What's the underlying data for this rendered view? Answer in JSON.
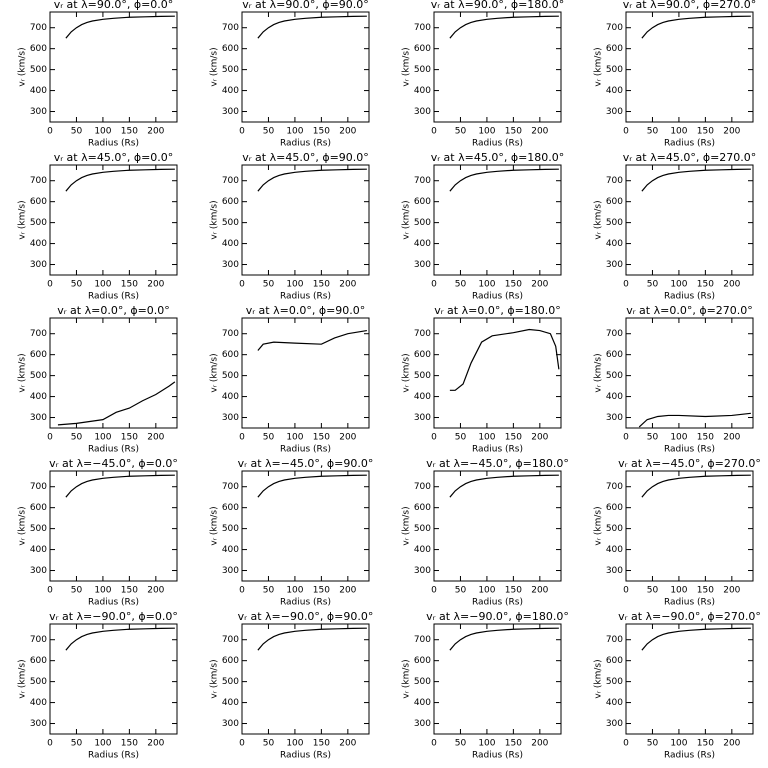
{
  "chart_data": [
    {
      "type": "line",
      "title": "vᵣ at λ=90.0°, ϕ=0.0°",
      "x_label": "Radius (Rs)",
      "y_label": "vᵣ (km/s)",
      "x": [
        30,
        40,
        50,
        60,
        70,
        80,
        100,
        120,
        150,
        180,
        210,
        236
      ],
      "values": [
        650,
        680,
        700,
        715,
        725,
        732,
        740,
        745,
        750,
        752,
        754,
        755
      ],
      "color": "#000000",
      "xlim": [
        0,
        240
      ],
      "ylim": [
        250,
        775
      ],
      "xticks": [
        0,
        50,
        100,
        150,
        200
      ],
      "yticks": [
        300,
        400,
        500,
        600,
        700
      ]
    },
    {
      "type": "line",
      "title": "vᵣ at λ=90.0°, ϕ=90.0°",
      "x_label": "Radius (Rs)",
      "y_label": "vᵣ (km/s)",
      "x": [
        30,
        40,
        50,
        60,
        70,
        80,
        100,
        120,
        150,
        180,
        210,
        236
      ],
      "values": [
        650,
        680,
        700,
        715,
        725,
        732,
        740,
        745,
        750,
        752,
        754,
        755
      ],
      "color": "#000000",
      "xlim": [
        0,
        240
      ],
      "ylim": [
        250,
        775
      ],
      "xticks": [
        0,
        50,
        100,
        150,
        200
      ],
      "yticks": [
        300,
        400,
        500,
        600,
        700
      ]
    },
    {
      "type": "line",
      "title": "vᵣ at λ=90.0°, ϕ=180.0°",
      "x_label": "Radius (Rs)",
      "y_label": "vᵣ (km/s)",
      "x": [
        30,
        40,
        50,
        60,
        70,
        80,
        100,
        120,
        150,
        180,
        210,
        236
      ],
      "values": [
        650,
        680,
        700,
        715,
        725,
        732,
        740,
        745,
        750,
        752,
        754,
        755
      ],
      "color": "#000000",
      "xlim": [
        0,
        240
      ],
      "ylim": [
        250,
        775
      ],
      "xticks": [
        0,
        50,
        100,
        150,
        200
      ],
      "yticks": [
        300,
        400,
        500,
        600,
        700
      ]
    },
    {
      "type": "line",
      "title": "vᵣ at λ=90.0°, ϕ=270.0°",
      "x_label": "Radius (Rs)",
      "y_label": "vᵣ (km/s)",
      "x": [
        30,
        40,
        50,
        60,
        70,
        80,
        100,
        120,
        150,
        180,
        210,
        236
      ],
      "values": [
        650,
        680,
        700,
        715,
        725,
        732,
        740,
        745,
        750,
        752,
        754,
        755
      ],
      "color": "#000000",
      "xlim": [
        0,
        240
      ],
      "ylim": [
        250,
        775
      ],
      "xticks": [
        0,
        50,
        100,
        150,
        200
      ],
      "yticks": [
        300,
        400,
        500,
        600,
        700
      ]
    },
    {
      "type": "line",
      "title": "vᵣ at λ=45.0°, ϕ=0.0°",
      "x_label": "Radius (Rs)",
      "y_label": "vᵣ (km/s)",
      "x": [
        30,
        40,
        50,
        60,
        70,
        80,
        100,
        120,
        150,
        180,
        210,
        236
      ],
      "values": [
        650,
        680,
        700,
        715,
        725,
        732,
        740,
        745,
        750,
        752,
        754,
        755
      ],
      "color": "#000000",
      "xlim": [
        0,
        240
      ],
      "ylim": [
        250,
        775
      ],
      "xticks": [
        0,
        50,
        100,
        150,
        200
      ],
      "yticks": [
        300,
        400,
        500,
        600,
        700
      ]
    },
    {
      "type": "line",
      "title": "vᵣ at λ=45.0°, ϕ=90.0°",
      "x_label": "Radius (Rs)",
      "y_label": "vᵣ (km/s)",
      "x": [
        30,
        40,
        50,
        60,
        70,
        80,
        100,
        120,
        150,
        180,
        210,
        236
      ],
      "values": [
        650,
        680,
        700,
        715,
        725,
        732,
        740,
        745,
        750,
        752,
        754,
        755
      ],
      "color": "#000000",
      "xlim": [
        0,
        240
      ],
      "ylim": [
        250,
        775
      ],
      "xticks": [
        0,
        50,
        100,
        150,
        200
      ],
      "yticks": [
        300,
        400,
        500,
        600,
        700
      ]
    },
    {
      "type": "line",
      "title": "vᵣ at λ=45.0°, ϕ=180.0°",
      "x_label": "Radius (Rs)",
      "y_label": "vᵣ (km/s)",
      "x": [
        30,
        40,
        50,
        60,
        70,
        80,
        100,
        120,
        150,
        180,
        210,
        236
      ],
      "values": [
        650,
        680,
        700,
        715,
        725,
        732,
        740,
        745,
        750,
        752,
        754,
        755
      ],
      "color": "#000000",
      "xlim": [
        0,
        240
      ],
      "ylim": [
        250,
        775
      ],
      "xticks": [
        0,
        50,
        100,
        150,
        200
      ],
      "yticks": [
        300,
        400,
        500,
        600,
        700
      ]
    },
    {
      "type": "line",
      "title": "vᵣ at λ=45.0°, ϕ=270.0°",
      "x_label": "Radius (Rs)",
      "y_label": "vᵣ (km/s)",
      "x": [
        30,
        40,
        50,
        60,
        70,
        80,
        100,
        120,
        150,
        180,
        210,
        236
      ],
      "values": [
        650,
        680,
        700,
        715,
        725,
        732,
        740,
        745,
        750,
        752,
        754,
        755
      ],
      "color": "#000000",
      "xlim": [
        0,
        240
      ],
      "ylim": [
        250,
        775
      ],
      "xticks": [
        0,
        50,
        100,
        150,
        200
      ],
      "yticks": [
        300,
        400,
        500,
        600,
        700
      ]
    },
    {
      "type": "line",
      "title": "vᵣ at λ=0.0°, ϕ=0.0°",
      "x_label": "Radius (Rs)",
      "y_label": "vᵣ (km/s)",
      "x": [
        15,
        50,
        100,
        125,
        150,
        175,
        200,
        225,
        236
      ],
      "values": [
        265,
        272,
        290,
        325,
        345,
        380,
        410,
        450,
        470
      ],
      "color": "#000000",
      "xlim": [
        0,
        240
      ],
      "ylim": [
        250,
        775
      ],
      "xticks": [
        0,
        50,
        100,
        150,
        200
      ],
      "yticks": [
        300,
        400,
        500,
        600,
        700
      ]
    },
    {
      "type": "line",
      "title": "vᵣ at λ=0.0°, ϕ=90.0°",
      "x_label": "Radius (Rs)",
      "y_label": "vᵣ (km/s)",
      "x": [
        30,
        40,
        60,
        100,
        150,
        175,
        200,
        236
      ],
      "values": [
        620,
        650,
        660,
        655,
        650,
        680,
        700,
        715
      ],
      "color": "#000000",
      "xlim": [
        0,
        240
      ],
      "ylim": [
        250,
        775
      ],
      "xticks": [
        0,
        50,
        100,
        150,
        200
      ],
      "yticks": [
        300,
        400,
        500,
        600,
        700
      ]
    },
    {
      "type": "line",
      "title": "vᵣ at λ=0.0°, ϕ=180.0°",
      "x_label": "Radius (Rs)",
      "y_label": "vᵣ (km/s)",
      "x": [
        30,
        40,
        55,
        70,
        90,
        110,
        150,
        180,
        200,
        220,
        230,
        236
      ],
      "values": [
        430,
        430,
        460,
        560,
        660,
        690,
        705,
        720,
        715,
        700,
        640,
        530
      ],
      "color": "#000000",
      "xlim": [
        0,
        240
      ],
      "ylim": [
        250,
        775
      ],
      "xticks": [
        0,
        50,
        100,
        150,
        200
      ],
      "yticks": [
        300,
        400,
        500,
        600,
        700
      ]
    },
    {
      "type": "line",
      "title": "vᵣ at λ=0.0°, ϕ=270.0°",
      "x_label": "Radius (Rs)",
      "y_label": "vᵣ (km/s)",
      "x": [
        25,
        40,
        60,
        80,
        100,
        150,
        200,
        236
      ],
      "values": [
        255,
        290,
        305,
        310,
        310,
        305,
        310,
        320
      ],
      "color": "#000000",
      "xlim": [
        0,
        240
      ],
      "ylim": [
        250,
        775
      ],
      "xticks": [
        0,
        50,
        100,
        150,
        200
      ],
      "yticks": [
        300,
        400,
        500,
        600,
        700
      ]
    },
    {
      "type": "line",
      "title": "vᵣ at λ=−45.0°, ϕ=0.0°",
      "x_label": "Radius (Rs)",
      "y_label": "vᵣ (km/s)",
      "x": [
        30,
        40,
        50,
        60,
        70,
        80,
        100,
        120,
        150,
        180,
        210,
        236
      ],
      "values": [
        650,
        680,
        700,
        715,
        725,
        732,
        740,
        745,
        750,
        752,
        754,
        755
      ],
      "color": "#000000",
      "xlim": [
        0,
        240
      ],
      "ylim": [
        250,
        775
      ],
      "xticks": [
        0,
        50,
        100,
        150,
        200
      ],
      "yticks": [
        300,
        400,
        500,
        600,
        700
      ]
    },
    {
      "type": "line",
      "title": "vᵣ at λ=−45.0°, ϕ=90.0°",
      "x_label": "Radius (Rs)",
      "y_label": "vᵣ (km/s)",
      "x": [
        30,
        40,
        50,
        60,
        70,
        80,
        100,
        120,
        150,
        180,
        210,
        236
      ],
      "values": [
        650,
        680,
        700,
        715,
        725,
        732,
        740,
        745,
        750,
        752,
        754,
        755
      ],
      "color": "#000000",
      "xlim": [
        0,
        240
      ],
      "ylim": [
        250,
        775
      ],
      "xticks": [
        0,
        50,
        100,
        150,
        200
      ],
      "yticks": [
        300,
        400,
        500,
        600,
        700
      ]
    },
    {
      "type": "line",
      "title": "vᵣ at λ=−45.0°, ϕ=180.0°",
      "x_label": "Radius (Rs)",
      "y_label": "vᵣ (km/s)",
      "x": [
        30,
        40,
        50,
        60,
        70,
        80,
        100,
        120,
        150,
        180,
        210,
        236
      ],
      "values": [
        650,
        680,
        700,
        715,
        725,
        732,
        740,
        745,
        750,
        752,
        754,
        755
      ],
      "color": "#000000",
      "xlim": [
        0,
        240
      ],
      "ylim": [
        250,
        775
      ],
      "xticks": [
        0,
        50,
        100,
        150,
        200
      ],
      "yticks": [
        300,
        400,
        500,
        600,
        700
      ]
    },
    {
      "type": "line",
      "title": "vᵣ at λ=−45.0°, ϕ=270.0°",
      "x_label": "Radius (Rs)",
      "y_label": "vᵣ (km/s)",
      "x": [
        30,
        40,
        50,
        60,
        70,
        80,
        100,
        120,
        150,
        180,
        210,
        236
      ],
      "values": [
        650,
        680,
        700,
        715,
        725,
        732,
        740,
        745,
        750,
        752,
        754,
        755
      ],
      "color": "#000000",
      "xlim": [
        0,
        240
      ],
      "ylim": [
        250,
        775
      ],
      "xticks": [
        0,
        50,
        100,
        150,
        200
      ],
      "yticks": [
        300,
        400,
        500,
        600,
        700
      ]
    },
    {
      "type": "line",
      "title": "vᵣ at λ=−90.0°, ϕ=0.0°",
      "x_label": "Radius (Rs)",
      "y_label": "vᵣ (km/s)",
      "x": [
        30,
        40,
        50,
        60,
        70,
        80,
        100,
        120,
        150,
        180,
        210,
        236
      ],
      "values": [
        650,
        680,
        700,
        715,
        725,
        732,
        740,
        745,
        750,
        752,
        754,
        755
      ],
      "color": "#000000",
      "xlim": [
        0,
        240
      ],
      "ylim": [
        250,
        775
      ],
      "xticks": [
        0,
        50,
        100,
        150,
        200
      ],
      "yticks": [
        300,
        400,
        500,
        600,
        700
      ]
    },
    {
      "type": "line",
      "title": "vᵣ at λ=−90.0°, ϕ=90.0°",
      "x_label": "Radius (Rs)",
      "y_label": "vᵣ (km/s)",
      "x": [
        30,
        40,
        50,
        60,
        70,
        80,
        100,
        120,
        150,
        180,
        210,
        236
      ],
      "values": [
        650,
        680,
        700,
        715,
        725,
        732,
        740,
        745,
        750,
        752,
        754,
        755
      ],
      "color": "#000000",
      "xlim": [
        0,
        240
      ],
      "ylim": [
        250,
        775
      ],
      "xticks": [
        0,
        50,
        100,
        150,
        200
      ],
      "yticks": [
        300,
        400,
        500,
        600,
        700
      ]
    },
    {
      "type": "line",
      "title": "vᵣ at λ=−90.0°, ϕ=180.0°",
      "x_label": "Radius (Rs)",
      "y_label": "vᵣ (km/s)",
      "x": [
        30,
        40,
        50,
        60,
        70,
        80,
        100,
        120,
        150,
        180,
        210,
        236
      ],
      "values": [
        650,
        680,
        700,
        715,
        725,
        732,
        740,
        745,
        750,
        752,
        754,
        755
      ],
      "color": "#000000",
      "xlim": [
        0,
        240
      ],
      "ylim": [
        250,
        775
      ],
      "xticks": [
        0,
        50,
        100,
        150,
        200
      ],
      "yticks": [
        300,
        400,
        500,
        600,
        700
      ]
    },
    {
      "type": "line",
      "title": "vᵣ at λ=−90.0°, ϕ=270.0°",
      "x_label": "Radius (Rs)",
      "y_label": "vᵣ (km/s)",
      "x": [
        30,
        40,
        50,
        60,
        70,
        80,
        100,
        120,
        150,
        180,
        210,
        236
      ],
      "values": [
        650,
        680,
        700,
        715,
        725,
        732,
        740,
        745,
        750,
        752,
        754,
        755
      ],
      "color": "#000000",
      "xlim": [
        0,
        240
      ],
      "ylim": [
        250,
        775
      ],
      "xticks": [
        0,
        50,
        100,
        150,
        200
      ],
      "yticks": [
        300,
        400,
        500,
        600,
        700
      ]
    }
  ]
}
